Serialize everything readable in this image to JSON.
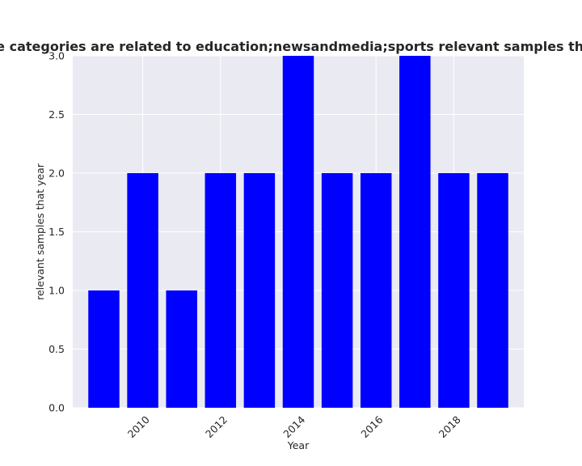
{
  "chart_data": {
    "type": "bar",
    "title": "Number of apps whose categories are related to education;newsandmedia;sports relevant samples that year in privacy policy",
    "xlabel": "Year",
    "ylabel": "relevant samples that year",
    "x": [
      2009,
      2010,
      2011,
      2012,
      2013,
      2014,
      2015,
      2016,
      2017,
      2018,
      2019
    ],
    "values": [
      1,
      2,
      1,
      2,
      2,
      3,
      2,
      2,
      3,
      2,
      2
    ],
    "xticks": [
      2010,
      2012,
      2014,
      2016,
      2018
    ],
    "xtick_labels": [
      "2010",
      "2012",
      "2014",
      "2016",
      "2018"
    ],
    "yticks": [
      0.0,
      0.5,
      1.0,
      1.5,
      2.0,
      2.5,
      3.0
    ],
    "ytick_labels": [
      "0.0",
      "0.5",
      "1.0",
      "1.5",
      "2.0",
      "2.5",
      "3.0"
    ],
    "ylim": [
      0,
      3.0
    ],
    "xlim": [
      2008.2,
      2019.8
    ],
    "grid": true,
    "colors": {
      "bar": "#0000ff",
      "plot_background": "#eaeaf2",
      "grid": "#ffffff"
    }
  }
}
